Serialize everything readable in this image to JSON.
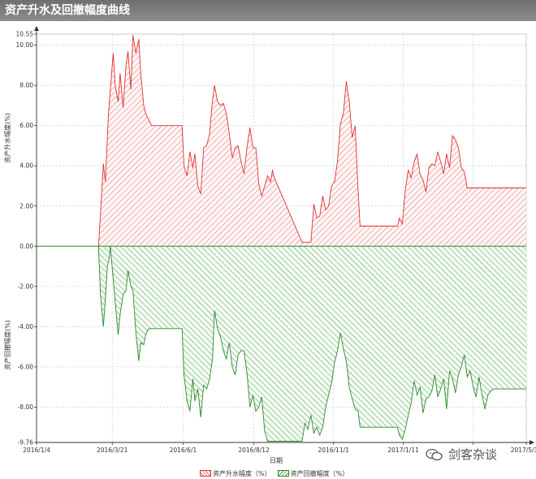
{
  "window_title": "资产升水及回撤幅度曲线",
  "watermark_text": "剑客杂谈",
  "chart_data": {
    "type": "area",
    "title": "",
    "xlabel": "日期",
    "ylabel_top": "资产升水幅度(%)",
    "ylabel_bottom": "资产回撤幅度(%)",
    "ylim": [
      -9.76,
      10.55
    ],
    "ytick_values": [
      10.55,
      10.0,
      8.0,
      6.0,
      4.0,
      2.0,
      0.0,
      -2.0,
      -4.0,
      -6.0,
      -8.0,
      -9.76
    ],
    "ytick_labels": [
      "10.55",
      "10.00",
      "8.00",
      "6.00",
      "4.00",
      "2.00",
      "0.00",
      "-2.00",
      "-4.00",
      "-6.00",
      "-8.00",
      "-9.76"
    ],
    "xlim": [
      "2016-01-04",
      "2017-05-16"
    ],
    "xtick_dates": [
      "2016-01-04",
      "2016-03-21",
      "2016-06-01",
      "2016-08-12",
      "2016-11-01",
      "2017-01-11",
      "2017-03-23",
      "2017-05-16"
    ],
    "xtick_labels": [
      "2016/1/4",
      "2016/3/21",
      "2016/6/1",
      "2016/8/12",
      "2016/11/1",
      "2017/1/11",
      "2017/3/23",
      "2017/5/16"
    ],
    "grid": true,
    "legend_position": "bottom-center",
    "colors": {
      "premium": "#e03030",
      "drawdown": "#2a8a2a"
    },
    "series": [
      {
        "name": "资产升水幅度（%）",
        "x": [
          "2016-03-07",
          "2016-03-09",
          "2016-03-12",
          "2016-03-14",
          "2016-03-17",
          "2016-03-22",
          "2016-03-24",
          "2016-03-27",
          "2016-03-29",
          "2016-04-01",
          "2016-04-04",
          "2016-04-06",
          "2016-04-09",
          "2016-04-11",
          "2016-04-14",
          "2016-04-17",
          "2016-04-19",
          "2016-04-22",
          "2016-04-24",
          "2016-04-27",
          "2016-04-30",
          "2016-05-03",
          "2016-05-06",
          "2016-05-09",
          "2016-05-31",
          "2016-06-02",
          "2016-06-05",
          "2016-06-08",
          "2016-06-11",
          "2016-06-13",
          "2016-06-16",
          "2016-06-19",
          "2016-06-22",
          "2016-06-25",
          "2016-06-28",
          "2016-07-01",
          "2016-07-03",
          "2016-07-06",
          "2016-07-09",
          "2016-07-12",
          "2016-07-15",
          "2016-07-18",
          "2016-07-21",
          "2016-07-24",
          "2016-07-27",
          "2016-07-30",
          "2016-08-02",
          "2016-08-05",
          "2016-08-08",
          "2016-08-11",
          "2016-08-14",
          "2016-08-17",
          "2016-08-20",
          "2016-08-23",
          "2016-08-26",
          "2016-08-29",
          "2016-08-31",
          "2016-09-01",
          "2016-09-30",
          "2016-10-03",
          "2016-10-06",
          "2016-10-09",
          "2016-10-12",
          "2016-10-15",
          "2016-10-18",
          "2016-10-21",
          "2016-10-24",
          "2016-10-27",
          "2016-10-30",
          "2016-11-02",
          "2016-11-05",
          "2016-11-08",
          "2016-11-11",
          "2016-11-14",
          "2016-11-17",
          "2016-11-20",
          "2016-11-23",
          "2016-11-26",
          "2016-11-28",
          "2016-11-29",
          "2017-01-02",
          "2017-01-05",
          "2017-01-07",
          "2017-01-10",
          "2017-01-13",
          "2017-01-16",
          "2017-01-19",
          "2017-01-22",
          "2017-01-25",
          "2017-01-28",
          "2017-01-31",
          "2017-02-03",
          "2017-02-06",
          "2017-02-09",
          "2017-02-12",
          "2017-02-15",
          "2017-02-18",
          "2017-02-21",
          "2017-02-24",
          "2017-02-27",
          "2017-03-02",
          "2017-03-05",
          "2017-03-08",
          "2017-03-11",
          "2017-03-14",
          "2017-03-17",
          "2017-03-20",
          "2017-03-23",
          "2017-03-26",
          "2017-03-29",
          "2017-04-01",
          "2017-04-04",
          "2017-04-07",
          "2017-04-10",
          "2017-04-13",
          "2017-04-16",
          "2017-04-19",
          "2017-05-16"
        ],
        "values": [
          0.0,
          1.6,
          4.1,
          3.2,
          6.5,
          9.6,
          8.0,
          7.2,
          8.6,
          6.9,
          9.0,
          9.7,
          7.8,
          10.5,
          9.6,
          10.3,
          8.6,
          7.0,
          6.6,
          6.3,
          6.0,
          6.0,
          6.0,
          6.0,
          6.0,
          4.0,
          3.5,
          4.7,
          3.9,
          4.6,
          3.0,
          2.6,
          4.9,
          5.0,
          5.6,
          7.3,
          8.0,
          7.2,
          7.0,
          7.1,
          6.6,
          5.6,
          4.4,
          4.9,
          5.0,
          4.2,
          3.6,
          4.9,
          5.9,
          4.9,
          4.9,
          3.1,
          2.5,
          3.0,
          3.5,
          3.2,
          3.8,
          3.5,
          0.2,
          0.2,
          0.2,
          0.2,
          2.1,
          1.4,
          1.5,
          2.5,
          1.8,
          2.0,
          3.0,
          3.2,
          4.2,
          6.1,
          6.6,
          8.2,
          7.2,
          5.4,
          6.0,
          2.8,
          1.0,
          1.0,
          1.0,
          1.0,
          1.4,
          1.1,
          2.8,
          3.8,
          3.4,
          4.2,
          4.6,
          3.6,
          3.3,
          2.7,
          3.9,
          4.1,
          4.0,
          4.7,
          4.2,
          3.6,
          4.6,
          3.9,
          5.5,
          5.3,
          4.9,
          3.9,
          3.7,
          2.9,
          2.9,
          2.9,
          2.9,
          2.9,
          2.9,
          2.9,
          2.9,
          2.9,
          2.9,
          2.9,
          2.9,
          2.9
        ]
      },
      {
        "name": "资产回撤幅度（%）",
        "x": [
          "2016-03-07",
          "2016-03-09",
          "2016-03-12",
          "2016-03-14",
          "2016-03-16",
          "2016-03-18",
          "2016-03-19",
          "2016-03-22",
          "2016-03-24",
          "2016-03-27",
          "2016-03-29",
          "2016-04-01",
          "2016-04-04",
          "2016-04-06",
          "2016-04-09",
          "2016-04-11",
          "2016-04-14",
          "2016-04-17",
          "2016-04-19",
          "2016-04-22",
          "2016-04-24",
          "2016-04-27",
          "2016-04-30",
          "2016-05-03",
          "2016-05-31",
          "2016-06-02",
          "2016-06-05",
          "2016-06-08",
          "2016-06-11",
          "2016-06-13",
          "2016-06-16",
          "2016-06-19",
          "2016-06-22",
          "2016-06-25",
          "2016-06-28",
          "2016-07-01",
          "2016-07-03",
          "2016-07-06",
          "2016-07-09",
          "2016-07-12",
          "2016-07-15",
          "2016-07-18",
          "2016-07-21",
          "2016-07-24",
          "2016-07-27",
          "2016-07-30",
          "2016-08-02",
          "2016-08-05",
          "2016-08-08",
          "2016-08-11",
          "2016-08-14",
          "2016-08-17",
          "2016-08-20",
          "2016-08-23",
          "2016-08-26",
          "2016-08-29",
          "2016-08-31",
          "2016-09-01",
          "2016-09-30",
          "2016-10-03",
          "2016-10-06",
          "2016-10-09",
          "2016-10-12",
          "2016-10-15",
          "2016-10-18",
          "2016-10-21",
          "2016-10-24",
          "2016-10-27",
          "2016-10-30",
          "2016-11-02",
          "2016-11-05",
          "2016-11-08",
          "2016-11-11",
          "2016-11-14",
          "2016-11-17",
          "2016-11-20",
          "2016-11-23",
          "2016-11-26",
          "2016-11-28",
          "2016-11-29",
          "2017-01-02",
          "2017-01-05",
          "2017-01-07",
          "2017-01-10",
          "2017-01-13",
          "2017-01-16",
          "2017-01-19",
          "2017-01-22",
          "2017-01-25",
          "2017-01-28",
          "2017-01-31",
          "2017-02-03",
          "2017-02-06",
          "2017-02-09",
          "2017-02-12",
          "2017-02-15",
          "2017-02-18",
          "2017-02-21",
          "2017-02-24",
          "2017-02-27",
          "2017-03-02",
          "2017-03-05",
          "2017-03-08",
          "2017-03-11",
          "2017-03-14",
          "2017-03-17",
          "2017-03-20",
          "2017-03-23",
          "2017-03-26",
          "2017-03-29",
          "2017-04-01",
          "2017-04-04",
          "2017-04-07",
          "2017-04-10",
          "2017-04-13",
          "2017-04-16",
          "2017-04-19",
          "2017-04-22",
          "2017-05-16"
        ],
        "values": [
          0.0,
          -2.4,
          -4.0,
          -2.6,
          -1.0,
          -0.6,
          0.0,
          -1.6,
          -2.8,
          -4.4,
          -3.4,
          -2.4,
          -2.2,
          -1.2,
          -2.0,
          -2.2,
          -4.3,
          -5.7,
          -4.8,
          -4.9,
          -4.4,
          -4.1,
          -4.1,
          -4.1,
          -4.1,
          -6.4,
          -7.7,
          -8.2,
          -6.6,
          -7.7,
          -7.1,
          -8.5,
          -6.9,
          -7.1,
          -6.6,
          -5.6,
          -3.2,
          -4.1,
          -4.5,
          -5.2,
          -5.6,
          -4.8,
          -6.0,
          -6.4,
          -5.4,
          -5.2,
          -5.2,
          -6.3,
          -8.0,
          -7.4,
          -8.2,
          -8.0,
          -7.5,
          -9.2,
          -9.7,
          -9.7,
          -9.7,
          -9.7,
          -9.7,
          -8.8,
          -9.1,
          -8.4,
          -9.3,
          -9.0,
          -9.4,
          -9.0,
          -8.0,
          -7.4,
          -6.8,
          -5.8,
          -5.2,
          -4.3,
          -5.1,
          -5.7,
          -7.0,
          -7.6,
          -8.1,
          -8.2,
          -9.0,
          -9.0,
          -9.0,
          -9.0,
          -9.4,
          -9.6,
          -9.1,
          -8.4,
          -7.8,
          -6.7,
          -7.4,
          -7.0,
          -8.3,
          -7.6,
          -7.5,
          -7.2,
          -6.4,
          -7.5,
          -7.1,
          -6.6,
          -8.1,
          -6.2,
          -6.6,
          -7.3,
          -6.4,
          -6.0,
          -5.4,
          -6.5,
          -6.2,
          -7.0,
          -7.5,
          -6.5,
          -7.4,
          -8.1,
          -7.4,
          -7.2,
          -7.1,
          -7.1,
          -7.1,
          -7.1,
          -7.1
        ]
      }
    ]
  }
}
